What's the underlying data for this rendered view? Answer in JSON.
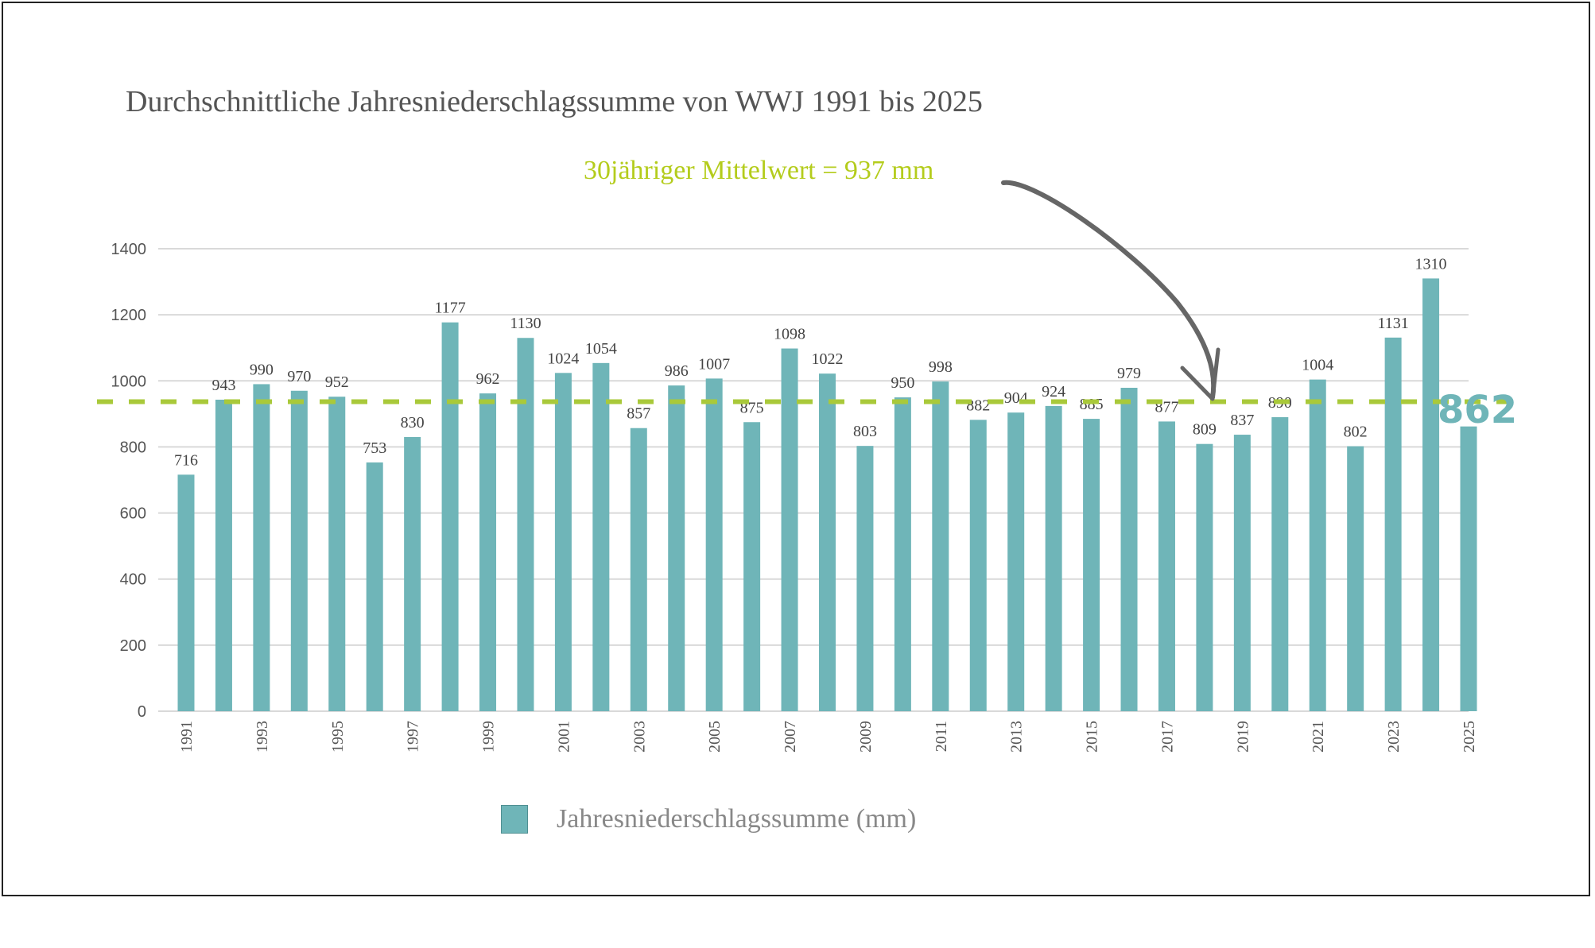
{
  "chart_data": {
    "type": "bar",
    "title": "Durchschnittliche Jahresniederschlagssumme von WWJ 1991 bis 2025",
    "categories": [
      "1991",
      "1992",
      "1993",
      "1994",
      "1995",
      "1996",
      "1997",
      "1998",
      "1999",
      "2000",
      "2001",
      "2002",
      "2003",
      "2004",
      "2005",
      "2006",
      "2007",
      "2008",
      "2009",
      "2010",
      "2011",
      "2012",
      "2013",
      "2014",
      "2015",
      "2016",
      "2017",
      "2018",
      "2019",
      "2020",
      "2021",
      "2022",
      "2023",
      "2024",
      "2025"
    ],
    "x_tick_labels": [
      "1991",
      "1993",
      "1995",
      "1997",
      "1999",
      "2001",
      "2003",
      "2005",
      "2007",
      "2009",
      "2011",
      "2013",
      "2015",
      "2017",
      "2019",
      "2021",
      "2023",
      "2025"
    ],
    "series": [
      {
        "name": "Jahresniederschlagssumme (mm)",
        "values": [
          716,
          943,
          990,
          970,
          952,
          753,
          830,
          1177,
          962,
          1130,
          1024,
          1054,
          857,
          986,
          1007,
          875,
          1098,
          1022,
          803,
          950,
          998,
          882,
          904,
          924,
          885,
          979,
          877,
          809,
          837,
          890,
          1004,
          802,
          1131,
          1310,
          862
        ]
      }
    ],
    "ylim": [
      0,
      1400
    ],
    "y_ticks": [
      0,
      200,
      400,
      600,
      800,
      1000,
      1200,
      1400
    ],
    "grid": true,
    "legend": "bottom",
    "reference_line": {
      "value": 937,
      "label": "30jähriger Mittelwert = 937 mm",
      "style": "dashed"
    },
    "highlight_label": "862",
    "colors": {
      "bar": "#6fb5b8",
      "reference": "#a9c93a",
      "title": "#555555",
      "arrow": "#666666"
    }
  }
}
